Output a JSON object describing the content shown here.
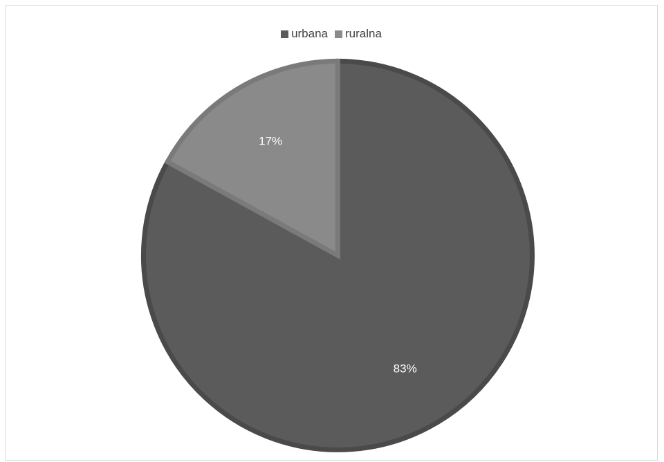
{
  "chart_data": {
    "type": "pie",
    "title": "",
    "legend_position": "top",
    "slices": [
      {
        "name": "urbana",
        "value": 83,
        "label": "83%",
        "color": "#5b5b5b",
        "border": "#4a4a4a"
      },
      {
        "name": "ruralna",
        "value": 17,
        "label": "17%",
        "color": "#8a8a8a",
        "border": "#7a7a7a"
      }
    ]
  }
}
